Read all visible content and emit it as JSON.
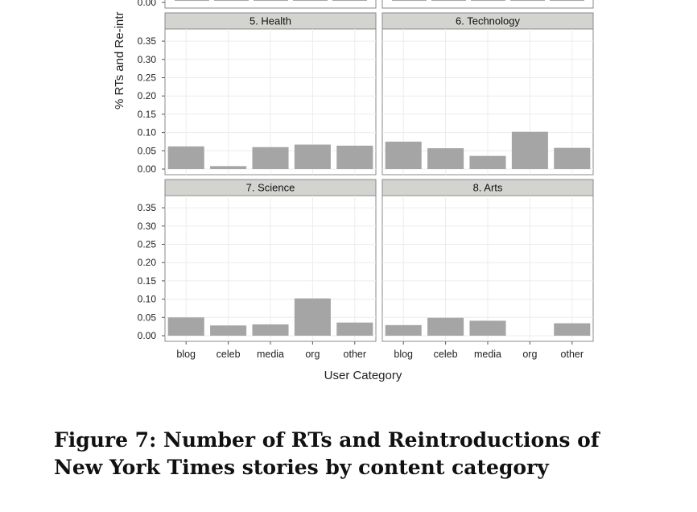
{
  "chart_data": [
    {
      "type": "bar",
      "panel": "5. Health",
      "categories": [
        "blog",
        "celeb",
        "media",
        "org",
        "other"
      ],
      "values": [
        0.062,
        0.008,
        0.06,
        0.067,
        0.064
      ]
    },
    {
      "type": "bar",
      "panel": "6. Technology",
      "categories": [
        "blog",
        "celeb",
        "media",
        "org",
        "other"
      ],
      "values": [
        0.075,
        0.057,
        0.036,
        0.102,
        0.058
      ]
    },
    {
      "type": "bar",
      "panel": "7. Science",
      "categories": [
        "blog",
        "celeb",
        "media",
        "org",
        "other"
      ],
      "values": [
        0.05,
        0.028,
        0.031,
        0.102,
        0.036
      ]
    },
    {
      "type": "bar",
      "panel": "8. Arts",
      "categories": [
        "blog",
        "celeb",
        "media",
        "org",
        "other"
      ],
      "values": [
        0.029,
        0.049,
        0.041,
        0,
        0.034
      ]
    }
  ],
  "axis": {
    "ylabel": "% RTs and Re-intr",
    "xlabel": "User Category",
    "yticks": [
      "0.00",
      "0.05",
      "0.10",
      "0.15",
      "0.20",
      "0.25",
      "0.30",
      "0.35"
    ],
    "ytick_values": [
      0,
      0.05,
      0.1,
      0.15,
      0.2,
      0.25,
      0.3,
      0.35
    ],
    "top_partial_tick": "0.00",
    "grid": true,
    "bar_color": "#a5a5a5",
    "strip_color": "#d3d3d0"
  },
  "caption": {
    "line1": "Figure 7:  Number of RTs and Reintroductions of",
    "line2": "New York Times stories by content category"
  }
}
